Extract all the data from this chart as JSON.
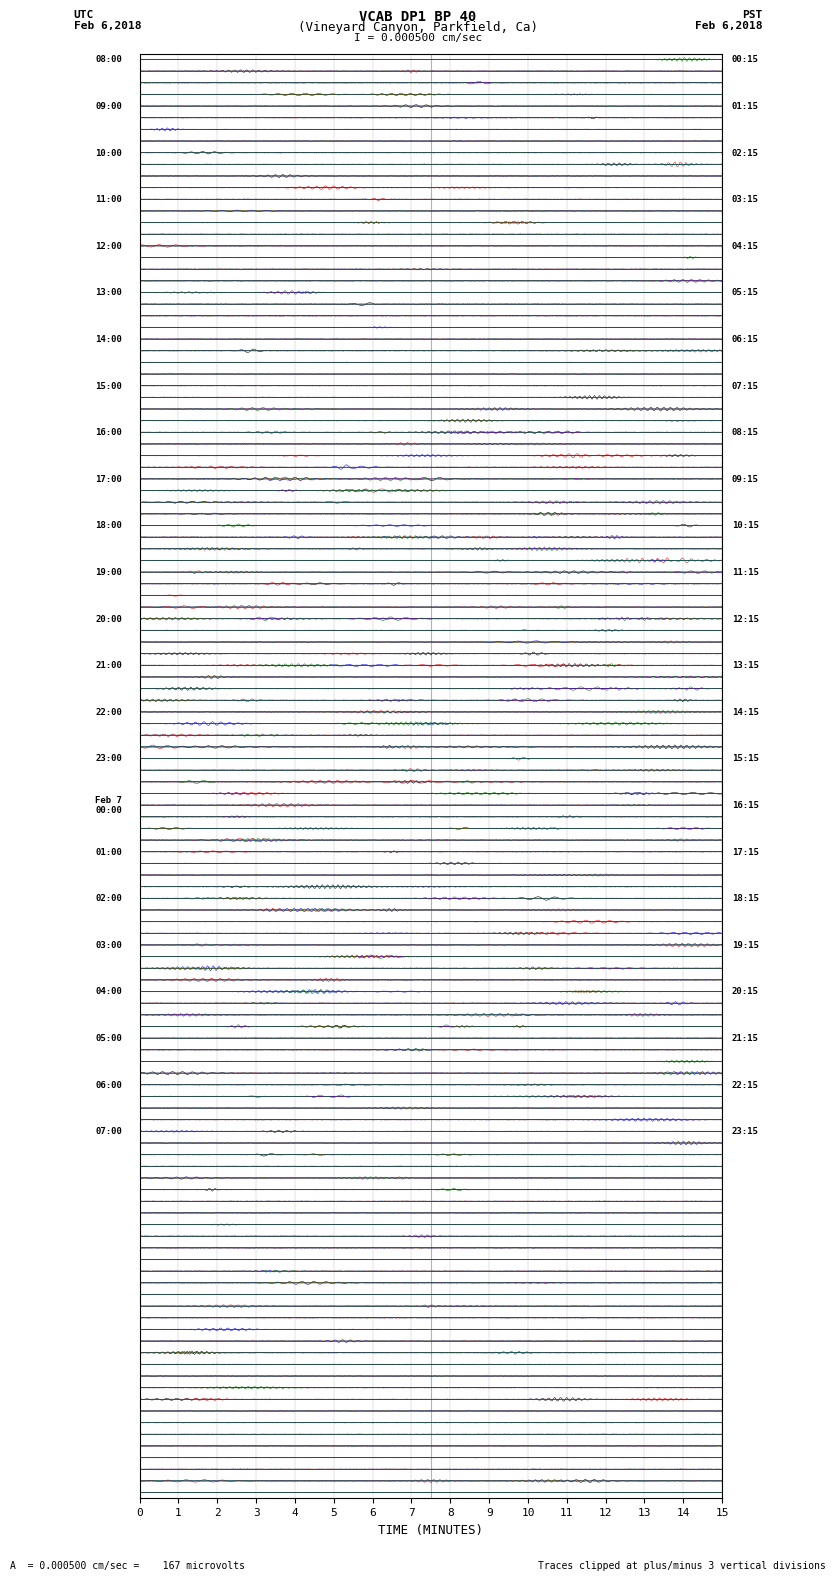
{
  "title_line1": "VCAB DP1 BP 40",
  "title_line2": "(Vineyard Canyon, Parkfield, Ca)",
  "scale_text": "I = 0.000500 cm/sec",
  "utc_label": "UTC",
  "pst_label": "PST",
  "date_left": "Feb 6,2018",
  "date_right": "Feb 6,2018",
  "xlabel": "TIME (MINUTES)",
  "footer_left": "= 0.000500 cm/sec =    167 microvolts",
  "footer_right": "Traces clipped at plus/minus 3 vertical divisions",
  "utc_times": [
    "08:00",
    "",
    "",
    "",
    "09:00",
    "",
    "",
    "",
    "10:00",
    "",
    "",
    "",
    "11:00",
    "",
    "",
    "",
    "12:00",
    "",
    "",
    "",
    "13:00",
    "",
    "",
    "",
    "14:00",
    "",
    "",
    "",
    "15:00",
    "",
    "",
    "",
    "16:00",
    "",
    "",
    "",
    "17:00",
    "",
    "",
    "",
    "18:00",
    "",
    "",
    "",
    "19:00",
    "",
    "",
    "",
    "20:00",
    "",
    "",
    "",
    "21:00",
    "",
    "",
    "",
    "22:00",
    "",
    "",
    "",
    "23:00",
    "",
    "",
    "",
    "Feb 7\n00:00",
    "",
    "",
    "",
    "01:00",
    "",
    "",
    "",
    "02:00",
    "",
    "",
    "",
    "03:00",
    "",
    "",
    "",
    "04:00",
    "",
    "",
    "",
    "05:00",
    "",
    "",
    "",
    "06:00",
    "",
    "",
    "",
    "07:00",
    "",
    ""
  ],
  "pst_times": [
    "00:15",
    "",
    "",
    "",
    "01:15",
    "",
    "",
    "",
    "02:15",
    "",
    "",
    "",
    "03:15",
    "",
    "",
    "",
    "04:15",
    "",
    "",
    "",
    "05:15",
    "",
    "",
    "",
    "06:15",
    "",
    "",
    "",
    "07:15",
    "",
    "",
    "",
    "08:15",
    "",
    "",
    "",
    "09:15",
    "",
    "",
    "",
    "10:15",
    "",
    "",
    "",
    "11:15",
    "",
    "",
    "",
    "12:15",
    "",
    "",
    "",
    "13:15",
    "",
    "",
    "",
    "14:15",
    "",
    "",
    "",
    "15:15",
    "",
    "",
    "",
    "16:15",
    "",
    "",
    "",
    "17:15",
    "",
    "",
    "",
    "18:15",
    "",
    "",
    "",
    "19:15",
    "",
    "",
    "",
    "20:15",
    "",
    "",
    "",
    "21:15",
    "",
    "",
    "",
    "22:15",
    "",
    "",
    "",
    "23:15",
    "",
    ""
  ],
  "colors": [
    "black",
    "red",
    "blue",
    "green"
  ],
  "n_rows": 124,
  "minutes": 15,
  "bg_color": "white",
  "trace_amplitude": 0.35,
  "noise_amplitude": 0.02,
  "vertical_line_x": 7.5,
  "seed": 42
}
